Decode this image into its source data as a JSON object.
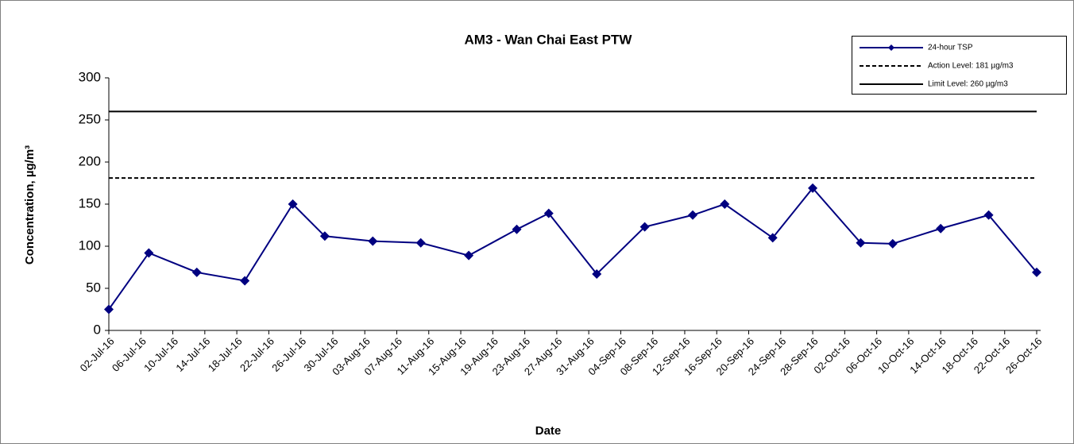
{
  "chart_data": {
    "type": "line",
    "title": "AM3 - Wan Chai East PTW",
    "x_label": "Date",
    "y_label": "Concentration, µg/m³",
    "x": [
      "2016-07-02",
      "2016-07-07",
      "2016-07-13",
      "2016-07-19",
      "2016-07-25",
      "2016-07-29",
      "2016-08-04",
      "2016-08-10",
      "2016-08-16",
      "2016-08-22",
      "2016-08-26",
      "2016-09-01",
      "2016-09-07",
      "2016-09-13",
      "2016-09-17",
      "2016-09-23",
      "2016-09-28",
      "2016-10-04",
      "2016-10-08",
      "2016-10-14",
      "2016-10-20",
      "2016-10-26"
    ],
    "series": [
      {
        "name": "24-hour TSP",
        "color": "#000080",
        "values": [
          25,
          92,
          69,
          59,
          150,
          112,
          106,
          104,
          89,
          120,
          139,
          67,
          123,
          137,
          150,
          110,
          169,
          104,
          103,
          121,
          137,
          69
        ]
      }
    ],
    "reference_lines": [
      {
        "name": "Action Level: 181 µg/m3",
        "value": 181,
        "style": "dashed",
        "color": "#000000"
      },
      {
        "name": "Limit Level: 260 µg/m3",
        "value": 260,
        "style": "solid",
        "color": "#000000"
      }
    ],
    "xlim": [
      "2016-07-02",
      "2016-10-26"
    ],
    "xticks": [
      {
        "value": "2016-07-02",
        "label": "02-Jul-16"
      },
      {
        "value": "2016-07-06",
        "label": "06-Jul-16"
      },
      {
        "value": "2016-07-10",
        "label": "10-Jul-16"
      },
      {
        "value": "2016-07-14",
        "label": "14-Jul-16"
      },
      {
        "value": "2016-07-18",
        "label": "18-Jul-16"
      },
      {
        "value": "2016-07-22",
        "label": "22-Jul-16"
      },
      {
        "value": "2016-07-26",
        "label": "26-Jul-16"
      },
      {
        "value": "2016-07-30",
        "label": "30-Jul-16"
      },
      {
        "value": "2016-08-03",
        "label": "03-Aug-16"
      },
      {
        "value": "2016-08-07",
        "label": "07-Aug-16"
      },
      {
        "value": "2016-08-11",
        "label": "11-Aug-16"
      },
      {
        "value": "2016-08-15",
        "label": "15-Aug-16"
      },
      {
        "value": "2016-08-19",
        "label": "19-Aug-16"
      },
      {
        "value": "2016-08-23",
        "label": "23-Aug-16"
      },
      {
        "value": "2016-08-27",
        "label": "27-Aug-16"
      },
      {
        "value": "2016-08-31",
        "label": "31-Aug-16"
      },
      {
        "value": "2016-09-04",
        "label": "04-Sep-16"
      },
      {
        "value": "2016-09-08",
        "label": "08-Sep-16"
      },
      {
        "value": "2016-09-12",
        "label": "12-Sep-16"
      },
      {
        "value": "2016-09-16",
        "label": "16-Sep-16"
      },
      {
        "value": "2016-09-20",
        "label": "20-Sep-16"
      },
      {
        "value": "2016-09-24",
        "label": "24-Sep-16"
      },
      {
        "value": "2016-09-28",
        "label": "28-Sep-16"
      },
      {
        "value": "2016-10-02",
        "label": "02-Oct-16"
      },
      {
        "value": "2016-10-06",
        "label": "06-Oct-16"
      },
      {
        "value": "2016-10-10",
        "label": "10-Oct-16"
      },
      {
        "value": "2016-10-14",
        "label": "14-Oct-16"
      },
      {
        "value": "2016-10-18",
        "label": "18-Oct-16"
      },
      {
        "value": "2016-10-22",
        "label": "22-Oct-16"
      },
      {
        "value": "2016-10-26",
        "label": "26-Oct-16"
      }
    ],
    "ylim": [
      0,
      300
    ],
    "yticks": [
      0,
      50,
      100,
      150,
      200,
      250,
      300
    ],
    "grid": false,
    "legend": "top-right"
  }
}
